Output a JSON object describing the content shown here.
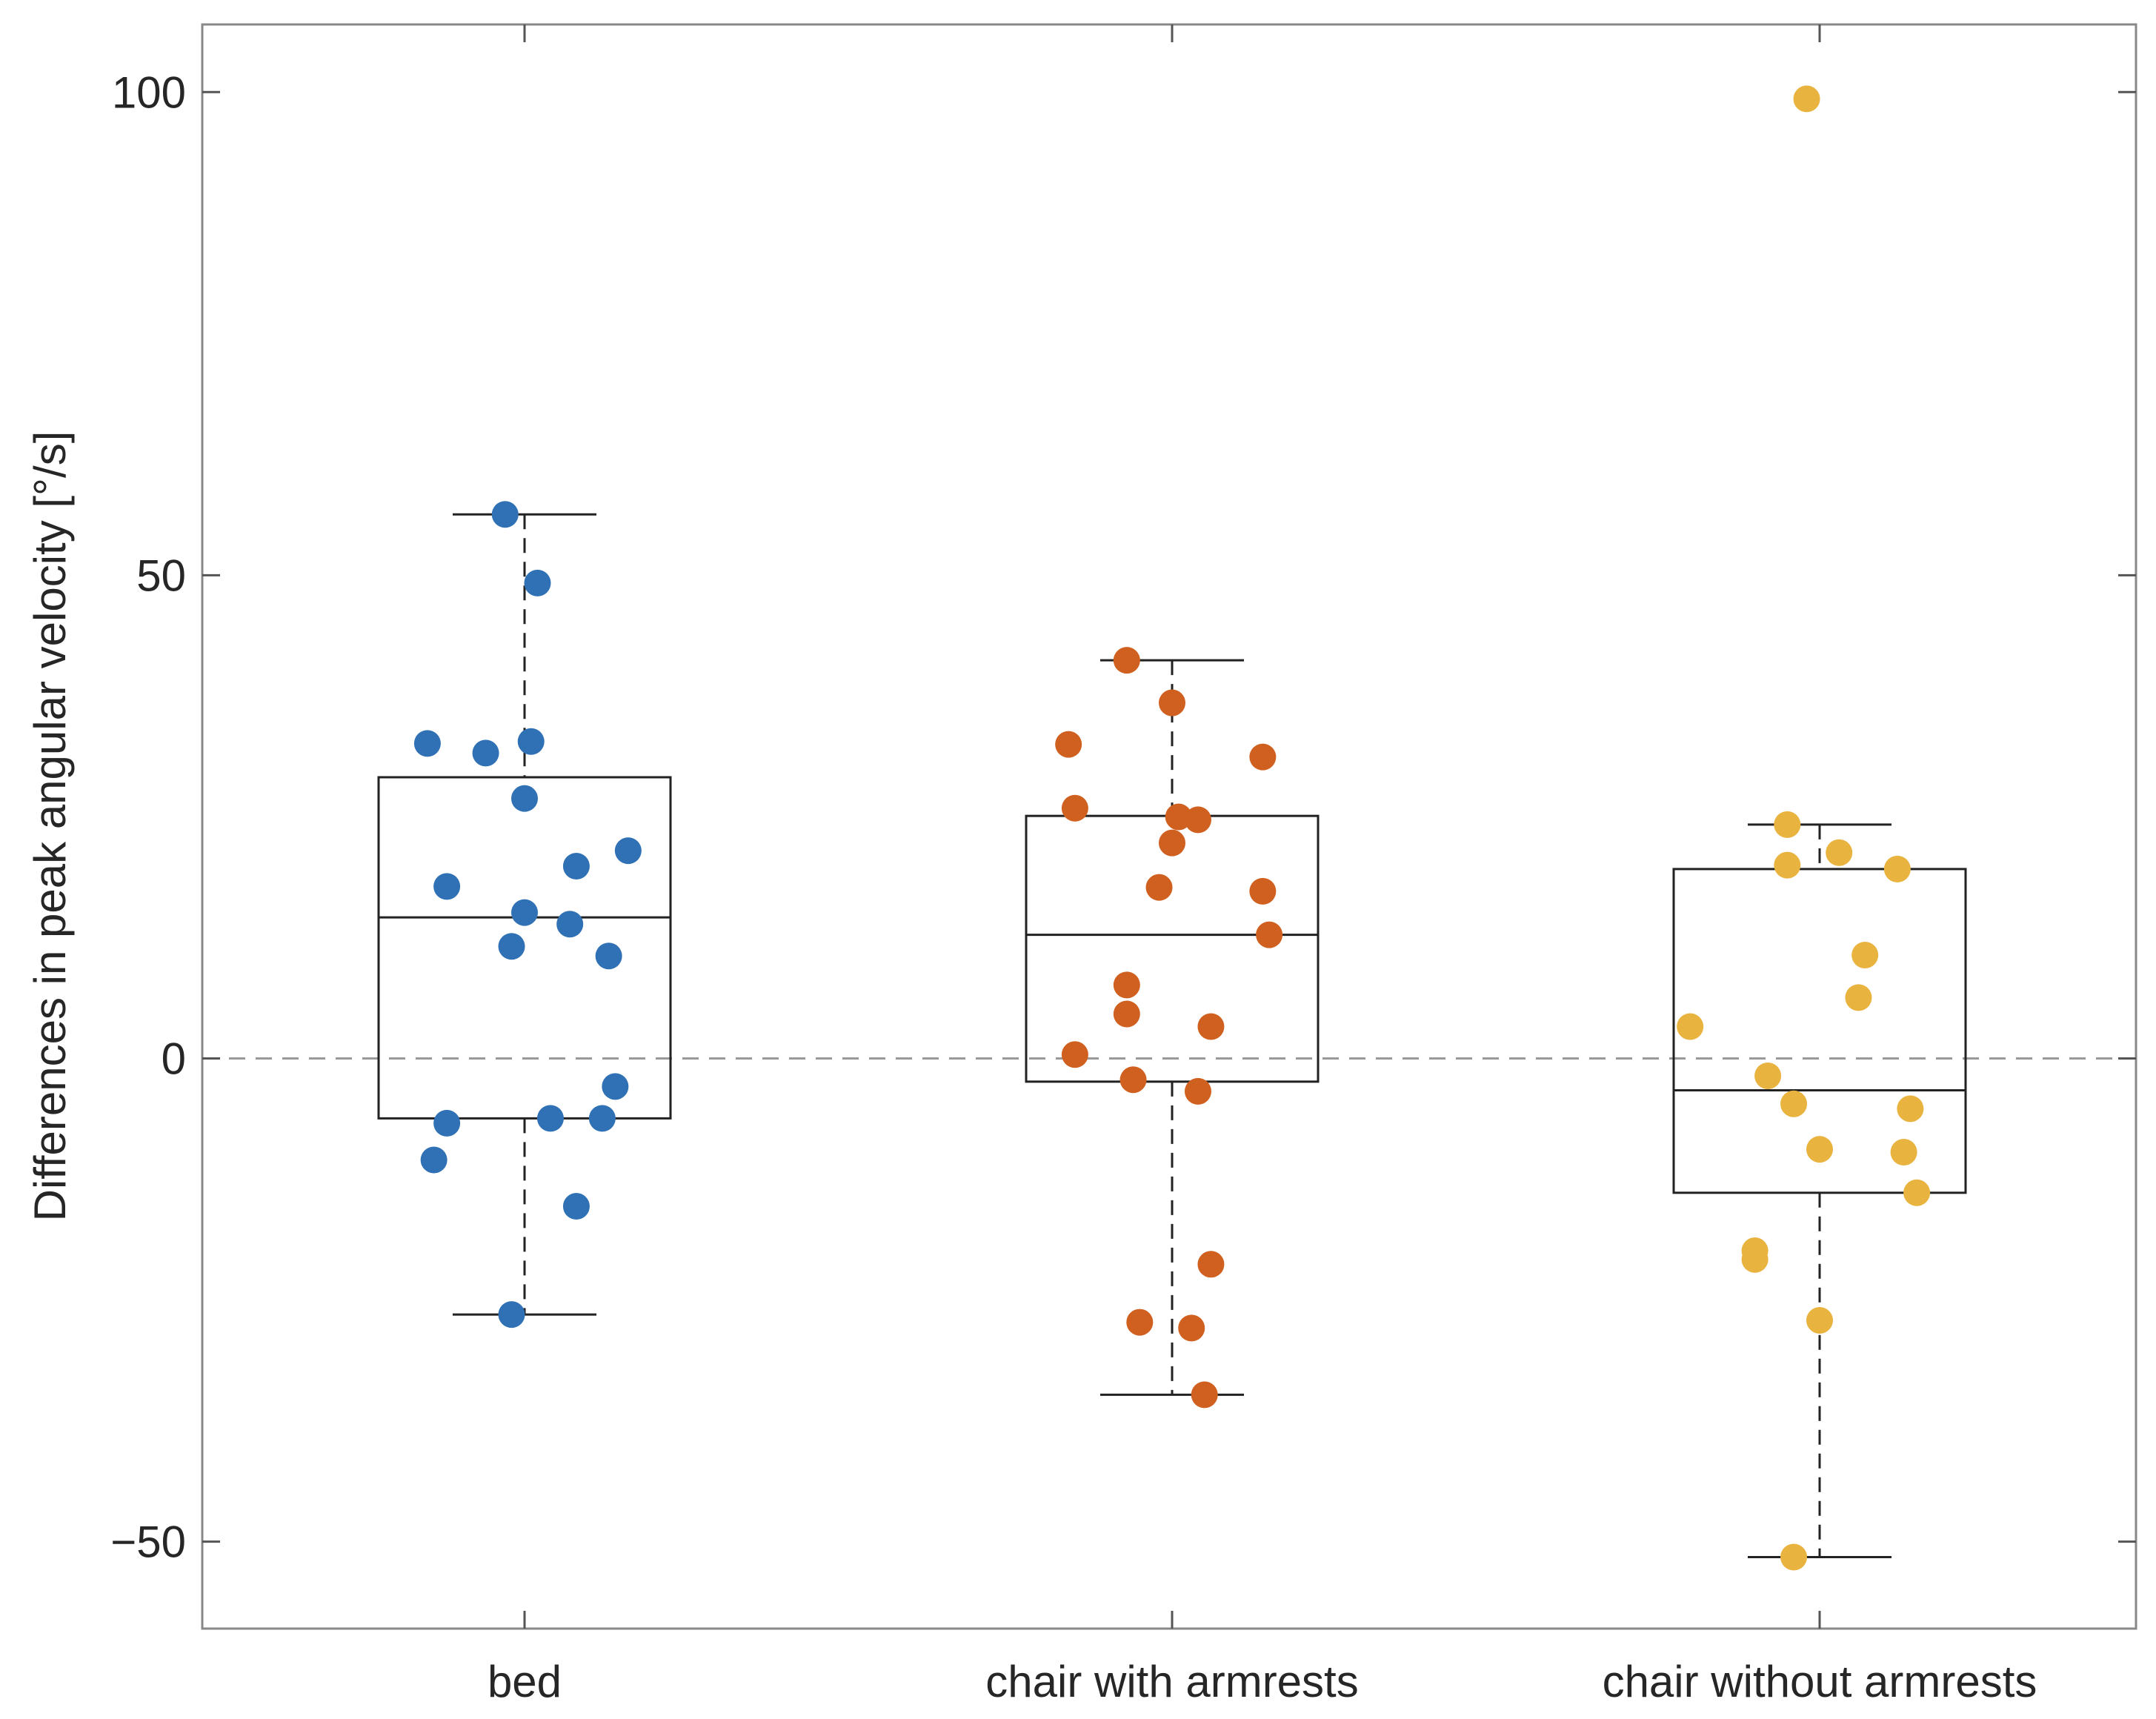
{
  "chart_data": {
    "type": "box",
    "title": "",
    "xlabel": "",
    "ylabel": "Differences in peak angular velocity [°/s]",
    "ylim": [
      -59,
      107
    ],
    "yticks": [
      -50,
      0,
      50,
      100
    ],
    "yticklabels": [
      "−50",
      "0",
      "50",
      "100"
    ],
    "categories": [
      "bed",
      "chair with armrests",
      "chair without armrests"
    ],
    "zero_line": 0,
    "series": [
      {
        "name": "bed",
        "color": "#2f71b4",
        "box": {
          "whisker_low": -26.5,
          "q1": -6.2,
          "median": 14.6,
          "q3": 29.1,
          "whisker_high": 56.3
        },
        "points": [
          {
            "x": -0.15,
            "y": 32.6
          },
          {
            "x": -0.06,
            "y": 31.6
          },
          {
            "x": 0.01,
            "y": 32.8
          },
          {
            "x": -0.03,
            "y": 56.3
          },
          {
            "x": 0.02,
            "y": 49.2
          },
          {
            "x": 0.0,
            "y": 26.9
          },
          {
            "x": -0.12,
            "y": 17.8
          },
          {
            "x": 0.08,
            "y": 19.9
          },
          {
            "x": 0.16,
            "y": 21.5
          },
          {
            "x": 0.0,
            "y": 15.1
          },
          {
            "x": 0.07,
            "y": 13.9
          },
          {
            "x": -0.02,
            "y": 11.6
          },
          {
            "x": 0.13,
            "y": 10.6
          },
          {
            "x": 0.14,
            "y": -2.9
          },
          {
            "x": -0.12,
            "y": -6.7
          },
          {
            "x": 0.04,
            "y": -6.2
          },
          {
            "x": 0.12,
            "y": -6.2
          },
          {
            "x": -0.14,
            "y": -10.5
          },
          {
            "x": 0.08,
            "y": -15.3
          },
          {
            "x": -0.02,
            "y": -26.5
          }
        ]
      },
      {
        "name": "chair with armrests",
        "color": "#d0601f",
        "box": {
          "whisker_low": -34.8,
          "q1": -2.4,
          "median": 12.8,
          "q3": 25.1,
          "whisker_high": 41.2
        },
        "points": [
          {
            "x": -0.07,
            "y": 41.2
          },
          {
            "x": 0.0,
            "y": 36.8
          },
          {
            "x": -0.16,
            "y": 32.5
          },
          {
            "x": 0.14,
            "y": 31.2
          },
          {
            "x": -0.15,
            "y": 25.9
          },
          {
            "x": 0.01,
            "y": 25.0
          },
          {
            "x": 0.04,
            "y": 24.7
          },
          {
            "x": 0.0,
            "y": 22.3
          },
          {
            "x": -0.02,
            "y": 17.7
          },
          {
            "x": 0.14,
            "y": 17.3
          },
          {
            "x": 0.15,
            "y": 12.8
          },
          {
            "x": -0.07,
            "y": 7.6
          },
          {
            "x": -0.07,
            "y": 4.6
          },
          {
            "x": 0.06,
            "y": 3.3
          },
          {
            "x": -0.15,
            "y": 0.4
          },
          {
            "x": -0.06,
            "y": -2.2
          },
          {
            "x": 0.04,
            "y": -3.4
          },
          {
            "x": 0.06,
            "y": -21.3
          },
          {
            "x": -0.05,
            "y": -27.3
          },
          {
            "x": 0.03,
            "y": -27.9
          },
          {
            "x": 0.05,
            "y": -34.8
          }
        ]
      },
      {
        "name": "chair without armrests",
        "color": "#e9b33f",
        "box": {
          "whisker_low": -51.6,
          "q1": -13.9,
          "median": -3.3,
          "q3": 19.6,
          "whisker_high": 24.2
        },
        "points": [
          {
            "x": -0.02,
            "y": 99.3
          },
          {
            "x": -0.05,
            "y": 24.2
          },
          {
            "x": 0.03,
            "y": 21.3
          },
          {
            "x": -0.05,
            "y": 20.0
          },
          {
            "x": 0.12,
            "y": 19.6
          },
          {
            "x": 0.07,
            "y": 10.7
          },
          {
            "x": 0.06,
            "y": 6.3
          },
          {
            "x": -0.2,
            "y": 3.3
          },
          {
            "x": -0.08,
            "y": -1.8
          },
          {
            "x": -0.04,
            "y": -4.7
          },
          {
            "x": 0.14,
            "y": -5.2
          },
          {
            "x": 0.0,
            "y": -9.4
          },
          {
            "x": 0.13,
            "y": -9.7
          },
          {
            "x": 0.15,
            "y": -13.9
          },
          {
            "x": -0.1,
            "y": -19.9
          },
          {
            "x": -0.1,
            "y": -20.8
          },
          {
            "x": 0.0,
            "y": -27.1
          },
          {
            "x": -0.04,
            "y": -51.6
          }
        ]
      }
    ]
  }
}
